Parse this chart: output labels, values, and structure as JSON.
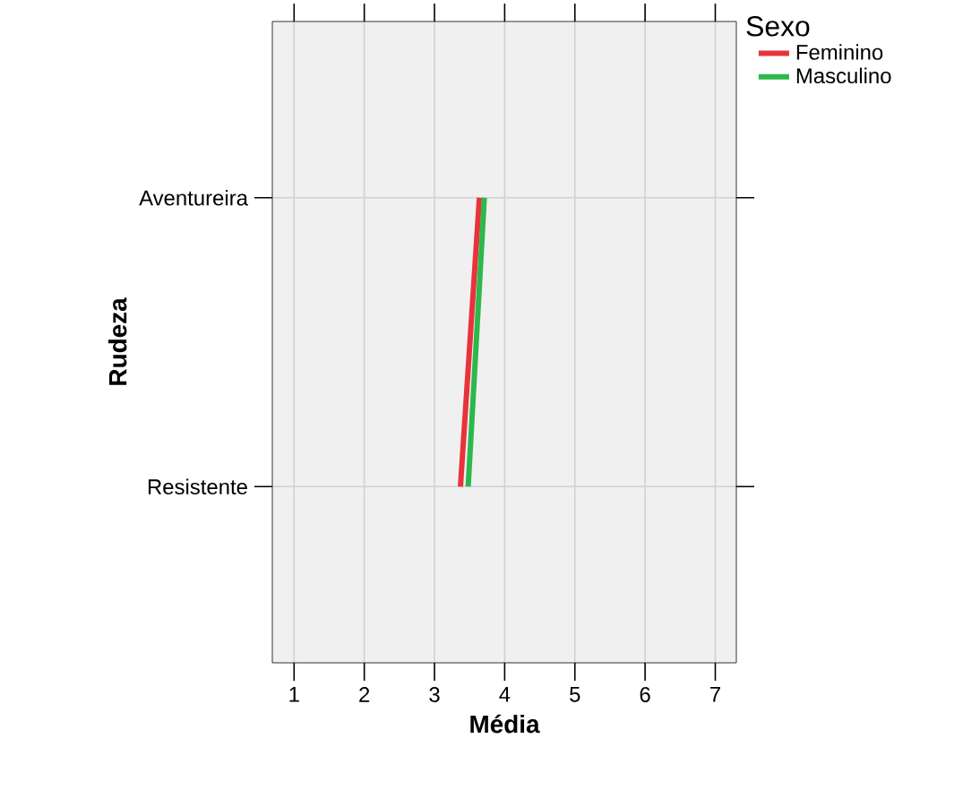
{
  "chart_data": {
    "type": "line",
    "orientation": "horizontal",
    "xlabel": "Média",
    "ylabel": "Rudeza",
    "legend_title": "Sexo",
    "categories": [
      "Aventureira",
      "Resistente"
    ],
    "series": [
      {
        "name": "Feminino",
        "color": "#e8333a",
        "values": [
          3.64,
          3.37
        ]
      },
      {
        "name": "Masculino",
        "color": "#2db84b",
        "values": [
          3.71,
          3.48
        ]
      }
    ],
    "xlim": [
      0.69,
      7.3
    ],
    "xticks": [
      1,
      2,
      3,
      4,
      5,
      6,
      7
    ],
    "grid": true,
    "legend": "right",
    "marker": "none",
    "line_style": "solid"
  }
}
